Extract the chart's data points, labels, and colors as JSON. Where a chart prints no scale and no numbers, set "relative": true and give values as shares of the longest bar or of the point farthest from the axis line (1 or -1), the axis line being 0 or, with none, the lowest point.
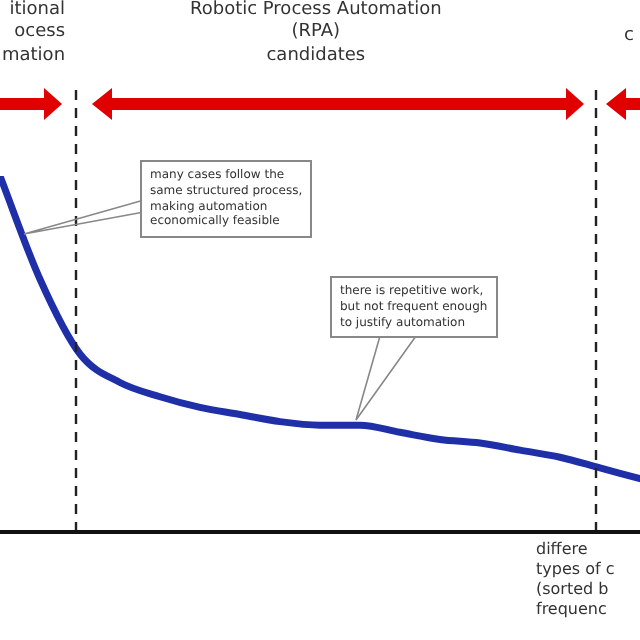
{
  "chart_data": {
    "type": "line",
    "relative": true,
    "legend": false,
    "grid": false,
    "marker": "none",
    "line_style": "solid",
    "categories": [
      null,
      null,
      null,
      null,
      null,
      null,
      null,
      null,
      null,
      null,
      null,
      null,
      null,
      null,
      null,
      null,
      null
    ],
    "series": [
      {
        "color": "#1f2fa8",
        "values": [
          1,
          0.71,
          0.5,
          0.42,
          0.38,
          0.35,
          0.33,
          0.31,
          0.3,
          0.3,
          0.28,
          0.26,
          0.25,
          0.23,
          0.21,
          0.18,
          0.15
        ]
      }
    ],
    "xlabel": "differe\ntypes of c\n(sorted b\nfrequenc",
    "annotations": [
      "itional\nocess\nmation",
      "Robotic Process Automation\n(RPA)\ncandidates",
      "c",
      "many cases follow the\nsame structured process,\nmaking automation\neconomically feasible",
      "there is repetitive work,\nbut not frequent enough\nto justify automation"
    ]
  }
}
